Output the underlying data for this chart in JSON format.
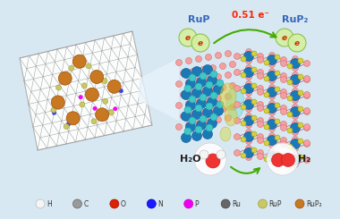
{
  "background_color": "#d8e8f2",
  "legend_items": [
    {
      "label": "H",
      "color": "#f5f5f5",
      "edge": "#bbbbbb"
    },
    {
      "label": "C",
      "color": "#999999",
      "edge": "#666666"
    },
    {
      "label": "O",
      "color": "#dd2200",
      "edge": "#aa1100"
    },
    {
      "label": "N",
      "color": "#1a1aff",
      "edge": "#0000cc"
    },
    {
      "label": "P",
      "color": "#ee00ee",
      "edge": "#cc00cc"
    },
    {
      "label": "Ru",
      "color": "#666666",
      "edge": "#444444"
    },
    {
      "label": "RuP",
      "color": "#c8c864",
      "edge": "#a0a040"
    },
    {
      "label": "RuP₂",
      "color": "#c87820",
      "edge": "#a05010"
    }
  ],
  "rup_label": "RuP",
  "rup2_label": "RuP₂",
  "electron_transfer": "0.51 e⁻",
  "h2o_label": "H₂O",
  "h2_label": "H₂",
  "rup_color": "#3366bb",
  "rup2_color": "#3366bb",
  "electron_color": "#ff2200",
  "electron_bubble_color": "#d4f0a0",
  "electron_bubble_edge": "#88bb44",
  "arrow_color": "#44aa00",
  "graphene_bg": "#ffffff",
  "graphene_line": "#aaaaaa",
  "sheet_shadow": "#b0c8d8",
  "pink_atom": "#f5a0a0",
  "pink_edge": "#cc7070",
  "blue_atom": "#1a7ab8",
  "blue_edge": "#0a5090",
  "cyan_atom": "#40c8c8",
  "cyan_edge": "#20a0a0",
  "yellow_atom": "#d4d040",
  "yellow_edge": "#a0a010",
  "rup2_fc": "#c87820",
  "rup2_ec": "#a05010",
  "rup_fc": "#c8c864",
  "rup_ec": "#a0a040",
  "zoom_arrow_color": "#d0e8f8"
}
